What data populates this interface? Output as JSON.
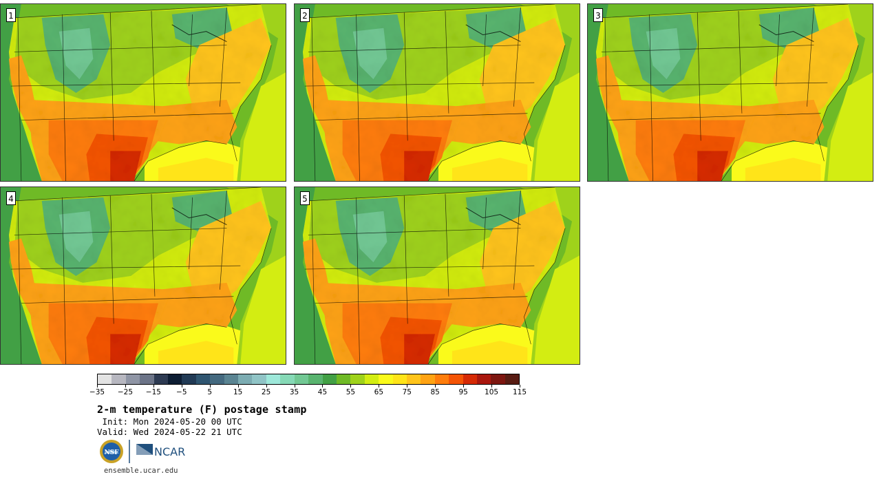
{
  "panels": [
    {
      "label": "1"
    },
    {
      "label": "2"
    },
    {
      "label": "3"
    },
    {
      "label": "4"
    },
    {
      "label": "5"
    }
  ],
  "colorbar": {
    "colors": [
      "#e3e3e3",
      "#b7b7c0",
      "#8f95a5",
      "#6c7488",
      "#2d3a52",
      "#0d1d33",
      "#213a55",
      "#2f5570",
      "#44697f",
      "#5a8492",
      "#7cacb2",
      "#90c4c6",
      "#9ee8da",
      "#86d9b6",
      "#72c894",
      "#59b46f",
      "#42a045",
      "#6fba26",
      "#9fd21b",
      "#d3ed12",
      "#fafa1b",
      "#ffe419",
      "#ffc41b",
      "#ffa313",
      "#ff7d0c",
      "#f45405",
      "#d62a05",
      "#a9170e",
      "#7d1610",
      "#581c13"
    ],
    "tick_labels": [
      "−35",
      "−25",
      "−15",
      "−5",
      "5",
      "15",
      "25",
      "35",
      "45",
      "55",
      "65",
      "75",
      "85",
      "95",
      "105",
      "115"
    ]
  },
  "title": "2-m temperature (F) postage stamp",
  "init": " Init: Mon 2024-05-20 00 UTC",
  "valid": "Valid: Wed 2024-05-22 21 UTC",
  "logos": {
    "nsf_text": "NSF",
    "ncar_text": "NCAR"
  },
  "url": "ensemble.ucar.edu"
}
